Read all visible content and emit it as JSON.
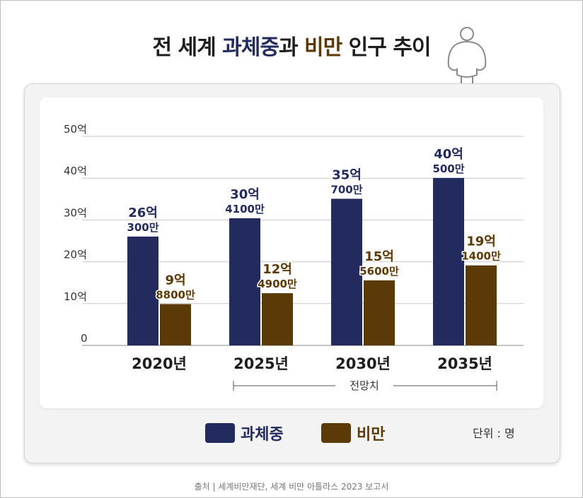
{
  "title": {
    "part1": "전 세계 ",
    "part2": "과체중",
    "part3": "과 ",
    "part4": "비만",
    "part5": " 인구 추이"
  },
  "colors": {
    "overweight": "#232a5e",
    "obesity": "#5b3a06",
    "text_dark": "#1d1d1d",
    "grid": "#c8c8c8"
  },
  "chart_data": {
    "type": "bar",
    "categories": [
      "2020년",
      "2025년",
      "2030년",
      "2035년"
    ],
    "series": [
      {
        "name": "과체중",
        "values": [
          2.603,
          3.041,
          3.507,
          4.005
        ],
        "labels_top": [
          "26억",
          "30억",
          "35억",
          "40억"
        ],
        "labels_bottom": [
          "300만",
          "4100만",
          "700만",
          "500만"
        ]
      },
      {
        "name": "비만",
        "values": [
          0.988,
          1.249,
          1.556,
          1.914
        ],
        "labels_top": [
          "9억",
          "12억",
          "15억",
          "19억"
        ],
        "labels_bottom": [
          "8800만",
          "4900만",
          "5600만",
          "1400만"
        ]
      }
    ],
    "y_ticks": [
      "0",
      "10억",
      "20억",
      "30억",
      "40억",
      "50억"
    ],
    "ylim": [
      0,
      5
    ],
    "grid": true,
    "projection_label": "전망치"
  },
  "legend": {
    "overweight": "과체중",
    "obesity": "비만"
  },
  "unit": "단위 : 명",
  "source": "출처 | 세계비만재단, 세계 비만 아틀라스 2023 보고서"
}
